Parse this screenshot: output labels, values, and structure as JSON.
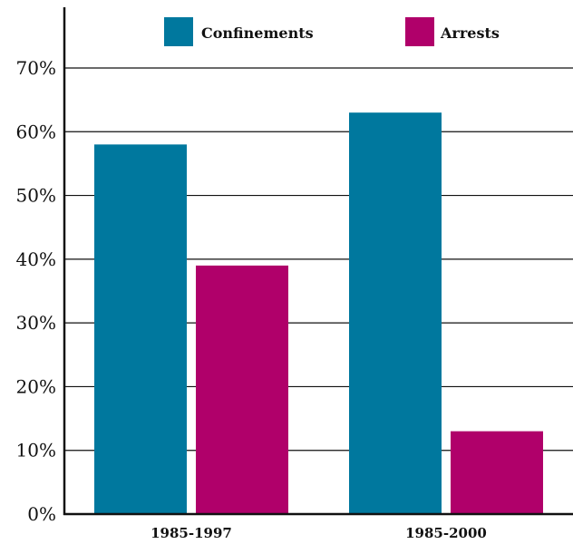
{
  "chart_data": {
    "type": "bar",
    "categories": [
      "1985-1997",
      "1985-2000"
    ],
    "series": [
      {
        "name": "Confinements",
        "values": [
          58,
          63
        ],
        "color": "#00789e"
      },
      {
        "name": "Arrests",
        "values": [
          39,
          13
        ],
        "color": "#b0006a"
      }
    ],
    "ylim": [
      0,
      70
    ],
    "yticks": [
      0,
      10,
      20,
      30,
      40,
      50,
      60,
      70
    ],
    "ytick_labels": [
      "0%",
      "10%",
      "20%",
      "30%",
      "40%",
      "50%",
      "60%",
      "70%"
    ],
    "grid": true,
    "legend": "top",
    "title": "",
    "xlabel": "",
    "ylabel": ""
  }
}
